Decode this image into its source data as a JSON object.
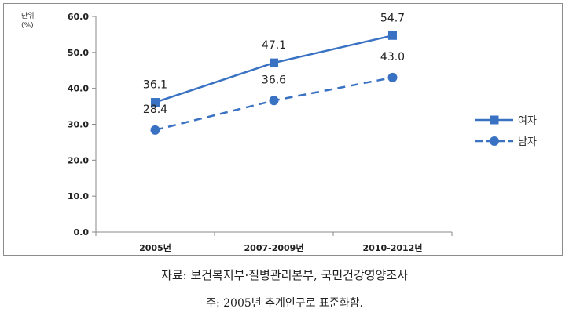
{
  "chart_data": {
    "type": "line",
    "categories": [
      "2005년",
      "2007-2009년",
      "2010-2012년"
    ],
    "series": [
      {
        "name": "여자",
        "values": [
          36.1,
          47.1,
          54.7
        ],
        "color": "#3a72c3",
        "marker": "square",
        "dash": "solid"
      },
      {
        "name": "남자",
        "values": [
          28.4,
          36.6,
          43.0
        ],
        "color": "#3a72c3",
        "marker": "circle",
        "dash": "dashed"
      }
    ],
    "value_labels": [
      [
        "36.1",
        "47.1",
        "54.7"
      ],
      [
        "28.4",
        "36.6",
        "43.0"
      ]
    ],
    "unit_label": [
      "단위",
      "(%)"
    ],
    "ylim": [
      0,
      60
    ],
    "yticks": [
      "0.0",
      "10.0",
      "20.0",
      "30.0",
      "40.0",
      "50.0",
      "60.0"
    ],
    "legend_position": "right",
    "grid": false
  },
  "caption": {
    "source": "자료: 보건복지부·질병관리본부, 국민건강영양조사",
    "note": "주: 2005년 추계인구로 표준화함."
  }
}
